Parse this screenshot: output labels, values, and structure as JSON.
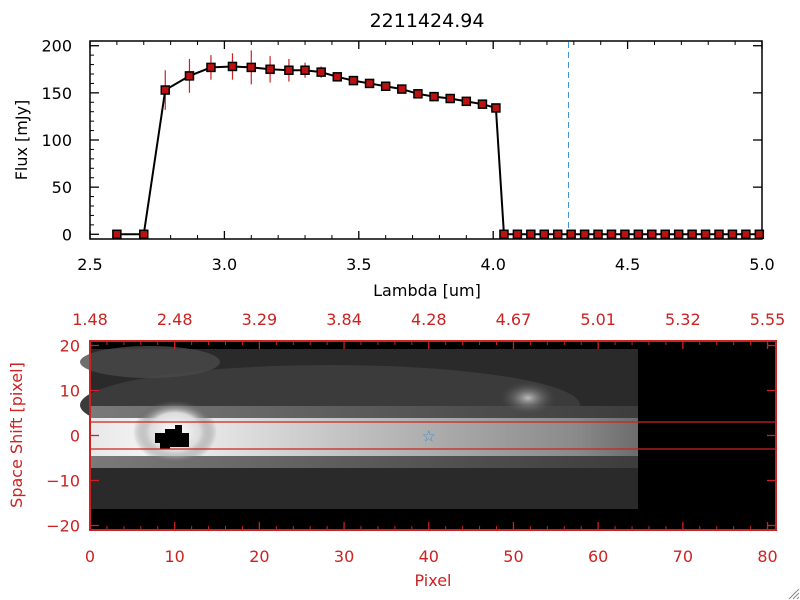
{
  "colors": {
    "axis": "#000000",
    "error_bar": "#cc2222",
    "marker_fill": "#bb1111",
    "line": "#000000",
    "red_axis": "#cc2222",
    "reference_line": "#3a8fd8",
    "star": "#3a8fd8",
    "background": "#ffffff"
  },
  "chart_data": [
    {
      "type": "line",
      "title": "2211424.94",
      "xlabel": "Lambda [um]",
      "ylabel": "Flux [mJy]",
      "xlim": [
        2.5,
        5.0
      ],
      "ylim": [
        -5,
        205
      ],
      "x_ticks": [
        2.5,
        3.0,
        3.5,
        4.0,
        4.5,
        5.0
      ],
      "x_tick_labels": [
        "2.5",
        "3.0",
        "3.5",
        "4.0",
        "4.5",
        "5.0"
      ],
      "y_ticks": [
        0,
        50,
        100,
        150,
        200
      ],
      "y_tick_labels": [
        "0",
        "50",
        "100",
        "150",
        "200"
      ],
      "reference_line_x": 4.28,
      "series": [
        {
          "x": [
            2.6,
            2.7,
            2.78,
            2.87,
            2.95,
            3.03,
            3.1,
            3.17,
            3.24,
            3.3,
            3.36,
            3.42,
            3.48,
            3.54,
            3.6,
            3.66,
            3.72,
            3.78,
            3.84,
            3.9,
            3.96,
            4.01,
            4.04,
            4.09,
            4.14,
            4.19,
            4.24,
            4.29,
            4.34,
            4.39,
            4.44,
            4.49,
            4.54,
            4.59,
            4.64,
            4.69,
            4.74,
            4.79,
            4.84,
            4.89,
            4.94,
            4.99
          ],
          "y": [
            0,
            0,
            153,
            168,
            177,
            178,
            177,
            175,
            174,
            174,
            172,
            167,
            163,
            160,
            157,
            154,
            149,
            146,
            144,
            141,
            138,
            134,
            0,
            0,
            0,
            0,
            0,
            0,
            0,
            0,
            0,
            0,
            0,
            0,
            0,
            0,
            0,
            0,
            0,
            0,
            0,
            0
          ],
          "yerr": [
            0,
            0,
            21,
            18,
            13,
            14,
            18,
            14,
            12,
            8,
            6,
            4,
            3,
            3,
            3,
            3,
            3,
            3,
            3,
            3,
            3,
            3,
            0,
            0,
            0,
            0,
            0,
            0,
            0,
            0,
            0,
            0,
            0,
            0,
            0,
            0,
            0,
            0,
            0,
            0,
            0,
            0
          ]
        }
      ]
    },
    {
      "type": "heatmap",
      "xlabel": "Pixel",
      "ylabel": "Space Shift [pixel]",
      "xlim": [
        0,
        81
      ],
      "ylim": [
        -21,
        21
      ],
      "x_ticks": [
        0,
        10,
        20,
        30,
        40,
        50,
        60,
        70,
        80
      ],
      "x_tick_labels": [
        "0",
        "10",
        "20",
        "30",
        "40",
        "50",
        "60",
        "70",
        "80"
      ],
      "y_ticks": [
        -20,
        -10,
        0,
        10,
        20
      ],
      "y_tick_labels": [
        "−20",
        "−10",
        "0",
        "10",
        "20"
      ],
      "top_ticks": [
        0,
        10,
        20,
        30,
        40,
        50,
        60,
        70,
        80
      ],
      "top_tick_labels": [
        "1.48",
        "2.48",
        "3.29",
        "3.84",
        "4.28",
        "4.67",
        "5.01",
        "5.32",
        "5.55"
      ],
      "aperture_y": [
        3,
        -3
      ],
      "star_marker": [
        40,
        0
      ],
      "trace_end_x": 65
    }
  ]
}
